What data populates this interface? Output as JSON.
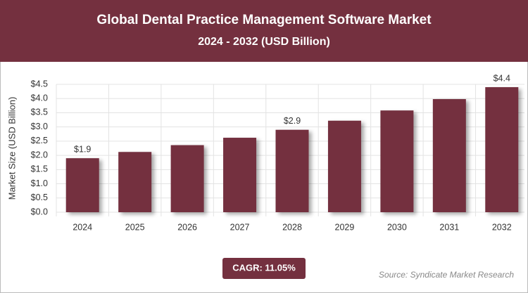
{
  "chart_data": {
    "type": "bar",
    "title": "Global Dental Practice Management Software Market",
    "subtitle": "2024 - 2032 (USD Billion)",
    "y_label": "Market Size (USD Billion)",
    "categories": [
      "2024",
      "2025",
      "2026",
      "2027",
      "2028",
      "2029",
      "2030",
      "2031",
      "2032"
    ],
    "values": [
      1.9,
      2.12,
      2.36,
      2.62,
      2.9,
      3.22,
      3.58,
      3.98,
      4.4
    ],
    "value_labels": [
      "$1.9",
      null,
      null,
      null,
      "$2.9",
      null,
      null,
      null,
      "$4.4"
    ],
    "color": "#74303f",
    "ylim": [
      0,
      4.5
    ],
    "yticks": [
      {
        "value": 0,
        "label": "$0.0"
      },
      {
        "value": 0.5,
        "label": "$0.5"
      },
      {
        "value": 1,
        "label": "$1.0"
      },
      {
        "value": 1.5,
        "label": "$1.5"
      },
      {
        "value": 2,
        "label": "$2.0"
      },
      {
        "value": 2.5,
        "label": "$2.5"
      },
      {
        "value": 3,
        "label": "$3.0"
      },
      {
        "value": 3.5,
        "label": "$3.5"
      },
      {
        "value": 4,
        "label": "$4.0"
      },
      {
        "value": 4.5,
        "label": "$4.5"
      }
    ],
    "grid": true,
    "annotation": "CAGR: 11.05%",
    "source": "Source: Syndicate Market Research"
  }
}
